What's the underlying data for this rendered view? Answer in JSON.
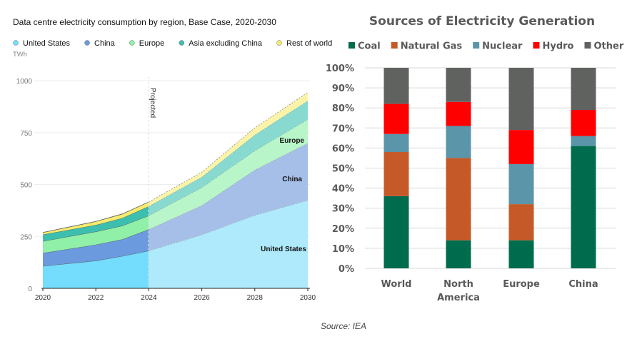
{
  "chart_data": [
    {
      "type": "area",
      "stacked": true,
      "title": "Data centre electricity consumption by region, Base Case, 2020-2030",
      "ylabel": "TWh",
      "xlabel": "",
      "x": [
        2020,
        2022,
        2023,
        2024,
        2026,
        2028,
        2030
      ],
      "x_ticks": [
        "2020",
        "2022",
        "2024",
        "2026",
        "2028",
        "2030"
      ],
      "y_ticks": [
        "0",
        "250",
        "500",
        "750",
        "1000"
      ],
      "ylim": [
        0,
        1000
      ],
      "xlim": [
        2020,
        2030
      ],
      "grid": true,
      "legend_position": "top-left",
      "projection_start": 2024,
      "projection_label": "Projected",
      "series": [
        {
          "name": "United States",
          "color": "#74dcfc",
          "projected_color": "#aeeafb",
          "values": [
            107,
            133,
            155,
            181,
            258,
            352,
            424
          ]
        },
        {
          "name": "China",
          "color": "#6b9ade",
          "projected_color": "#a6bfe8",
          "values": [
            63,
            77,
            81,
            103,
            141,
            218,
            275
          ]
        },
        {
          "name": "Europe",
          "color": "#90f0a8",
          "projected_color": "#b8f6c9",
          "values": [
            57,
            63,
            65,
            66,
            86,
            92,
            114
          ]
        },
        {
          "name": "Asia excluding China",
          "color": "#3dbfb0",
          "projected_color": "#88d9cf",
          "values": [
            32,
            32,
            37,
            45,
            51,
            77,
            90
          ]
        },
        {
          "name": "Rest of world",
          "color": "#f5eb6e",
          "projected_color": "#fbf4a8",
          "values": [
            10,
            17,
            20,
            21,
            23,
            34,
            40
          ]
        }
      ],
      "annotations": [
        "Europe",
        "China",
        "United States"
      ]
    },
    {
      "type": "bar",
      "stacked": true,
      "percent": true,
      "title": "Sources of Electricity Generation",
      "categories": [
        "World",
        "North America",
        "Europe",
        "China"
      ],
      "y_ticks": [
        "0%",
        "10%",
        "20%",
        "30%",
        "40%",
        "50%",
        "60%",
        "70%",
        "80%",
        "90%",
        "100%"
      ],
      "ylim": [
        0,
        100
      ],
      "grid": true,
      "legend_position": "top",
      "series": [
        {
          "name": "Coal",
          "color": "#006c4e",
          "values": [
            36,
            14,
            14,
            61
          ]
        },
        {
          "name": "Natural Gas",
          "color": "#c55a28",
          "values": [
            22,
            41,
            18,
            0
          ]
        },
        {
          "name": "Nuclear",
          "color": "#5b95aa",
          "values": [
            9,
            16,
            20,
            5
          ]
        },
        {
          "name": "Hydro",
          "color": "#ff0000",
          "values": [
            15,
            12,
            17,
            13
          ]
        },
        {
          "name": "Other",
          "color": "#606260",
          "values": [
            18,
            17,
            31,
            21
          ]
        }
      ]
    }
  ],
  "source": "Source: IEA"
}
